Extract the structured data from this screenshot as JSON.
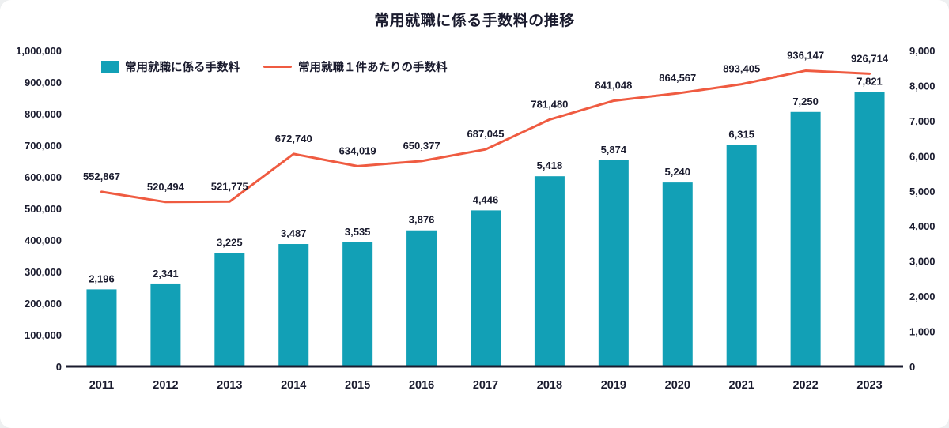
{
  "title": "常用就職に係る手数料の推移",
  "colors": {
    "bar": "#12a0b6",
    "line": "#ef5b41",
    "text": "#1a1b2e",
    "baseline": "#1a1b2e",
    "background": "#ffffff"
  },
  "chart_data": {
    "type": "bar+line combo",
    "title": "常用就職に係る手数料の推移",
    "categories": [
      "2011",
      "2012",
      "2013",
      "2014",
      "2015",
      "2016",
      "2017",
      "2018",
      "2019",
      "2020",
      "2021",
      "2022",
      "2023"
    ],
    "series": [
      {
        "name": "常用就職に係る手数料",
        "type": "bar",
        "axis": "right",
        "color": "#12a0b6",
        "values": [
          2196,
          2341,
          3225,
          3487,
          3535,
          3876,
          4446,
          5418,
          5874,
          5240,
          6315,
          7250,
          7821
        ]
      },
      {
        "name": "常用就職１件あたりの手数料",
        "type": "line",
        "axis": "left",
        "color": "#ef5b41",
        "values": [
          552867,
          520494,
          521775,
          672740,
          634019,
          650377,
          687045,
          781480,
          841048,
          864567,
          893405,
          936147,
          926714
        ]
      }
    ],
    "left_axis": {
      "min": 0,
      "max": 1000000,
      "step": 100000
    },
    "right_axis": {
      "min": 0,
      "max": 9000,
      "step": 1000
    },
    "grid": false,
    "legend_position": "top-left-inset",
    "data_labels": true
  }
}
